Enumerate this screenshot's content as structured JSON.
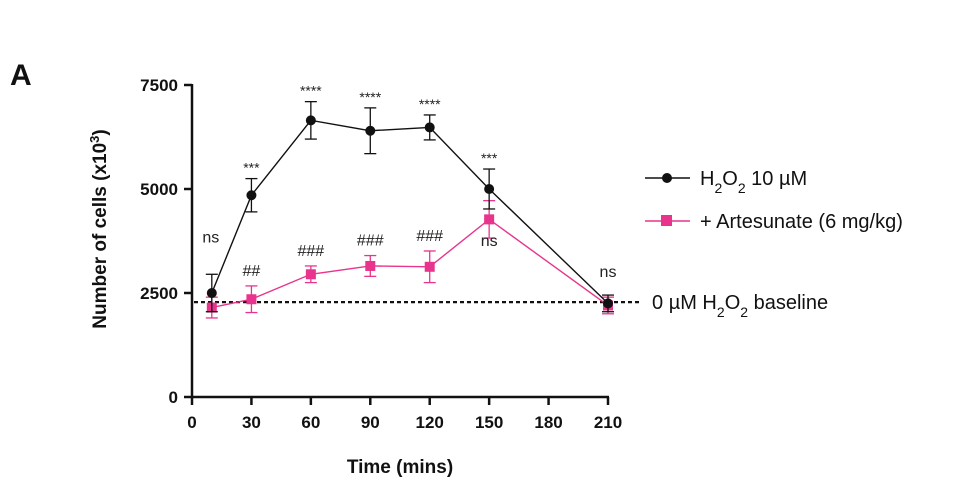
{
  "panel_label": "A",
  "colors": {
    "series_black": "#111111",
    "series_pink": "#e8348c",
    "baseline": "#111111"
  },
  "chart_data": {
    "type": "line",
    "xlabel": "Time (mins)",
    "ylabel": "Number of cells (x10",
    "ylabel_sup": "3",
    "ylabel_close": ")",
    "xlim": [
      0,
      210
    ],
    "ylim": [
      0,
      7500
    ],
    "xticks": [
      0,
      30,
      60,
      90,
      120,
      150,
      180,
      210
    ],
    "yticks": [
      0,
      2500,
      5000,
      7500
    ],
    "grid": false,
    "legend_position": "right",
    "series": [
      {
        "name": "H2O2 10 µM",
        "name_parts": {
          "a": "H",
          "sub": "2",
          "b": "O",
          "sub2": "2",
          "c": " 10 µM"
        },
        "color": "#111111",
        "marker": "circle",
        "x": [
          10,
          30,
          60,
          90,
          120,
          150,
          210
        ],
        "y": [
          2500,
          4850,
          6650,
          6400,
          6480,
          5000,
          2250
        ],
        "err": [
          450,
          400,
          450,
          550,
          300,
          480,
          200
        ],
        "labels": [
          "ns",
          "***",
          "****",
          "****",
          "****",
          "***",
          "ns"
        ]
      },
      {
        "name": "+ Artesunate (6 mg/kg)",
        "color": "#e8348c",
        "marker": "square",
        "x": [
          10,
          30,
          60,
          90,
          120,
          150,
          210
        ],
        "y": [
          2150,
          2350,
          2950,
          3150,
          3130,
          4270,
          2200
        ],
        "err": [
          250,
          320,
          200,
          250,
          380,
          450,
          200
        ],
        "labels": [
          "",
          "##",
          "###",
          "###",
          "###",
          "ns",
          ""
        ]
      }
    ],
    "baseline": {
      "y": 2280,
      "label_a": "0 ",
      "label_mu": "µ",
      "label_b": "M H",
      "label_sub": "2",
      "label_c": "O",
      "label_sub2": "2",
      "label_d": " baseline"
    }
  }
}
